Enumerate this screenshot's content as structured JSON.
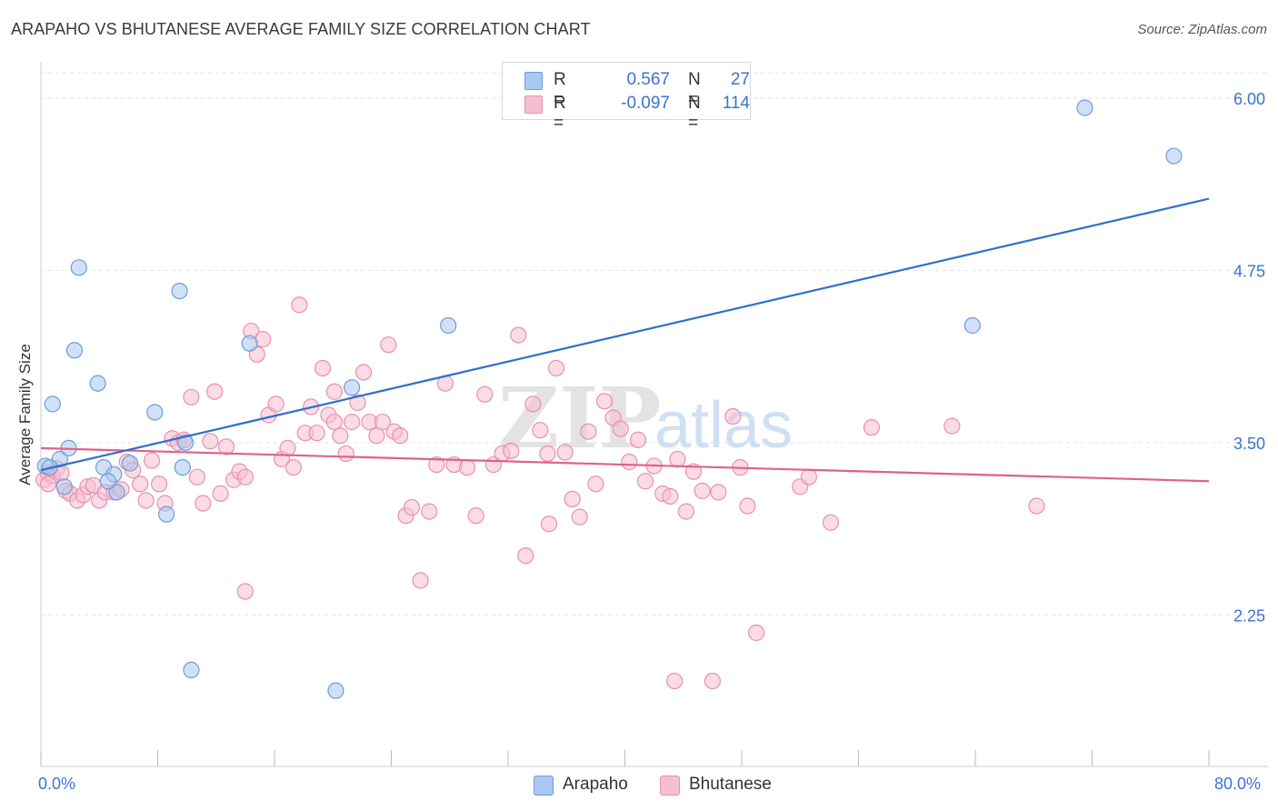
{
  "title": "ARAPAHO VS BHUTANESE AVERAGE FAMILY SIZE CORRELATION CHART",
  "source": "Source: ZipAtlas.com",
  "watermark": {
    "zip": "ZIP",
    "atlas": "atlas"
  },
  "legend": {
    "rows": [
      {
        "r_label": "R =",
        "r_value": "0.567",
        "n_label": "N =",
        "n_value": "27"
      },
      {
        "r_label": "R =",
        "r_value": "-0.097",
        "n_label": "N =",
        "n_value": "114"
      }
    ]
  },
  "bottom_legend": {
    "arapaho": "Arapaho",
    "bhutanese": "Bhutanese"
  },
  "axes": {
    "ylabel": "Average Family Size",
    "x_min_label": "0.0%",
    "x_max_label": "80.0%",
    "y_ticks": [
      "6.00",
      "4.75",
      "3.50",
      "2.25"
    ]
  },
  "colors": {
    "arapaho_fill": "#aac8f0",
    "arapaho_stroke": "#6f9bd8",
    "arapaho_line": "#2f6fcc",
    "bhutanese_fill": "#f7bdd0",
    "bhutanese_stroke": "#e890ae",
    "bhutanese_line": "#e0608c",
    "tick_text": "#3b73d1"
  },
  "chart_data": {
    "type": "scatter",
    "xlim": [
      0,
      80
    ],
    "ylim": [
      1.15,
      6.25
    ],
    "y_ticks": [
      2.25,
      3.5,
      4.75,
      6.0
    ],
    "grid": "horizontal dashed",
    "legend_position": "top-center",
    "series": [
      {
        "name": "Arapaho",
        "trend": {
          "x": [
            0,
            80
          ],
          "y": [
            3.3,
            5.27
          ]
        },
        "points": [
          [
            0.3,
            3.33
          ],
          [
            0.8,
            3.78
          ],
          [
            1.3,
            3.38
          ],
          [
            1.6,
            3.18
          ],
          [
            1.9,
            3.46
          ],
          [
            2.6,
            4.77
          ],
          [
            2.3,
            4.17
          ],
          [
            3.9,
            3.93
          ],
          [
            4.3,
            3.32
          ],
          [
            5.2,
            3.14
          ],
          [
            5.0,
            3.27
          ],
          [
            4.6,
            3.22
          ],
          [
            7.8,
            3.72
          ],
          [
            8.6,
            2.98
          ],
          [
            9.7,
            3.32
          ],
          [
            9.9,
            3.5
          ],
          [
            10.3,
            1.85
          ],
          [
            9.5,
            4.6
          ],
          [
            14.3,
            4.22
          ],
          [
            21.3,
            3.9
          ],
          [
            20.2,
            1.7
          ],
          [
            27.9,
            4.35
          ],
          [
            63.8,
            4.35
          ],
          [
            71.5,
            5.93
          ],
          [
            77.6,
            5.58
          ],
          [
            0.6,
            3.32
          ],
          [
            6.1,
            3.35
          ]
        ]
      },
      {
        "name": "Bhutanese",
        "trend": {
          "x": [
            0,
            80
          ],
          "y": [
            3.46,
            3.22
          ]
        },
        "points": [
          [
            0.2,
            3.23
          ],
          [
            0.5,
            3.28
          ],
          [
            0.8,
            3.26
          ],
          [
            1.1,
            3.31
          ],
          [
            1.4,
            3.28
          ],
          [
            1.7,
            3.15
          ],
          [
            2.0,
            3.13
          ],
          [
            2.5,
            3.08
          ],
          [
            2.9,
            3.12
          ],
          [
            3.2,
            3.18
          ],
          [
            3.6,
            3.19
          ],
          [
            4.0,
            3.08
          ],
          [
            4.4,
            3.14
          ],
          [
            5.0,
            3.14
          ],
          [
            5.5,
            3.16
          ],
          [
            5.9,
            3.36
          ],
          [
            6.3,
            3.3
          ],
          [
            6.8,
            3.2
          ],
          [
            7.2,
            3.08
          ],
          [
            7.6,
            3.37
          ],
          [
            8.1,
            3.2
          ],
          [
            8.5,
            3.06
          ],
          [
            9.0,
            3.53
          ],
          [
            9.4,
            3.5
          ],
          [
            9.8,
            3.52
          ],
          [
            10.3,
            3.83
          ],
          [
            10.7,
            3.25
          ],
          [
            11.1,
            3.06
          ],
          [
            11.6,
            3.51
          ],
          [
            11.9,
            3.87
          ],
          [
            12.3,
            3.13
          ],
          [
            12.7,
            3.47
          ],
          [
            13.2,
            3.23
          ],
          [
            13.6,
            3.29
          ],
          [
            14.0,
            3.25
          ],
          [
            14.4,
            4.31
          ],
          [
            14.8,
            4.14
          ],
          [
            15.2,
            4.25
          ],
          [
            15.6,
            3.7
          ],
          [
            16.1,
            3.78
          ],
          [
            16.5,
            3.38
          ],
          [
            16.9,
            3.46
          ],
          [
            17.3,
            3.32
          ],
          [
            17.7,
            4.5
          ],
          [
            18.1,
            3.57
          ],
          [
            18.5,
            3.76
          ],
          [
            18.9,
            3.57
          ],
          [
            19.3,
            4.04
          ],
          [
            19.7,
            3.7
          ],
          [
            20.1,
            3.65
          ],
          [
            20.5,
            3.55
          ],
          [
            20.9,
            3.42
          ],
          [
            21.3,
            3.65
          ],
          [
            21.7,
            3.79
          ],
          [
            22.1,
            4.01
          ],
          [
            22.5,
            3.65
          ],
          [
            23.0,
            3.55
          ],
          [
            23.4,
            3.65
          ],
          [
            23.8,
            4.21
          ],
          [
            24.2,
            3.58
          ],
          [
            24.6,
            3.55
          ],
          [
            25.0,
            2.97
          ],
          [
            25.4,
            3.03
          ],
          [
            26.0,
            2.5
          ],
          [
            26.6,
            3.0
          ],
          [
            27.1,
            3.34
          ],
          [
            27.7,
            3.93
          ],
          [
            28.3,
            3.34
          ],
          [
            29.2,
            3.32
          ],
          [
            29.8,
            2.97
          ],
          [
            30.4,
            3.85
          ],
          [
            31.0,
            3.34
          ],
          [
            31.6,
            3.42
          ],
          [
            32.2,
            3.44
          ],
          [
            32.7,
            4.28
          ],
          [
            33.2,
            2.68
          ],
          [
            33.7,
            3.78
          ],
          [
            34.2,
            3.59
          ],
          [
            34.8,
            2.91
          ],
          [
            35.3,
            4.04
          ],
          [
            35.9,
            3.43
          ],
          [
            36.4,
            3.09
          ],
          [
            36.9,
            2.96
          ],
          [
            37.5,
            3.58
          ],
          [
            38.0,
            3.2
          ],
          [
            38.6,
            3.8
          ],
          [
            39.2,
            3.68
          ],
          [
            39.7,
            3.6
          ],
          [
            40.3,
            3.36
          ],
          [
            40.9,
            3.52
          ],
          [
            41.4,
            3.22
          ],
          [
            42.0,
            3.33
          ],
          [
            42.6,
            3.13
          ],
          [
            43.1,
            3.11
          ],
          [
            43.6,
            3.38
          ],
          [
            44.2,
            3.0
          ],
          [
            44.7,
            3.29
          ],
          [
            45.3,
            3.15
          ],
          [
            46.4,
            3.14
          ],
          [
            47.4,
            3.69
          ],
          [
            47.9,
            3.32
          ],
          [
            48.4,
            3.04
          ],
          [
            49.0,
            2.12
          ],
          [
            52.0,
            3.18
          ],
          [
            52.6,
            3.25
          ],
          [
            54.1,
            2.92
          ],
          [
            56.9,
            3.61
          ],
          [
            62.4,
            3.62
          ],
          [
            68.2,
            3.04
          ],
          [
            14.0,
            2.42
          ],
          [
            43.4,
            1.77
          ],
          [
            46.0,
            1.77
          ],
          [
            20.1,
            3.87
          ],
          [
            34.7,
            3.42
          ],
          [
            0.5,
            3.2
          ]
        ]
      }
    ]
  }
}
